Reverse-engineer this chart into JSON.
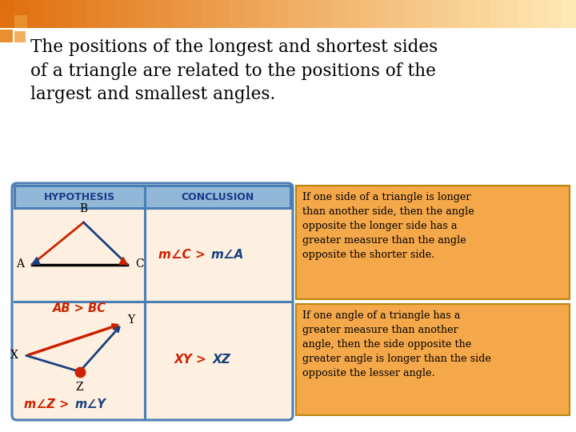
{
  "bg_color": "#ffffff",
  "title_text": "The positions of the longest and shortest sides\nof a triangle are related to the positions of the\nlargest and smallest angles.",
  "title_fontsize": 15.5,
  "title_color": "#000000",
  "table_bg": "#fdf0e0",
  "table_header_bg": "#92b8d8",
  "table_border_color": "#4a7fb5",
  "hyp_label": "HYPOTHESIS",
  "con_label": "CONCLUSION",
  "header_text_color": "#1a3a8a",
  "tri1_formula": "m∠C > m∠A",
  "tri1_hyp": "AB > BC",
  "tri2_label": "m∠Z > m∠Y",
  "tri2_formula": "XY > XZ",
  "box1_text": "If one side of a triangle is longer\nthan another side, then the angle\nopposite the longer side has a\ngreater measure than the angle\nopposite the shorter side.",
  "box2_text": "If one angle of a triangle has a\ngreater measure than another\nangle, then the side opposite the\ngreater angle is longer than the side\nopposite the lesser angle.",
  "box_bg": "#f5a84a",
  "box_border": "#b8860b",
  "box_text_color": "#000000",
  "red_color": "#cc2200",
  "blue_color": "#1a4080",
  "formula_red": "#cc2200",
  "formula_blue": "#1a4080",
  "deco_orange1": "#e07010",
  "deco_orange2": "#f0a050",
  "deco_orange3": "#f8c888",
  "deco_orange4": "#fce0b8",
  "sq1_color": "#e07010",
  "sq2_color": "#e89030",
  "sq3_color": "#f0b060"
}
